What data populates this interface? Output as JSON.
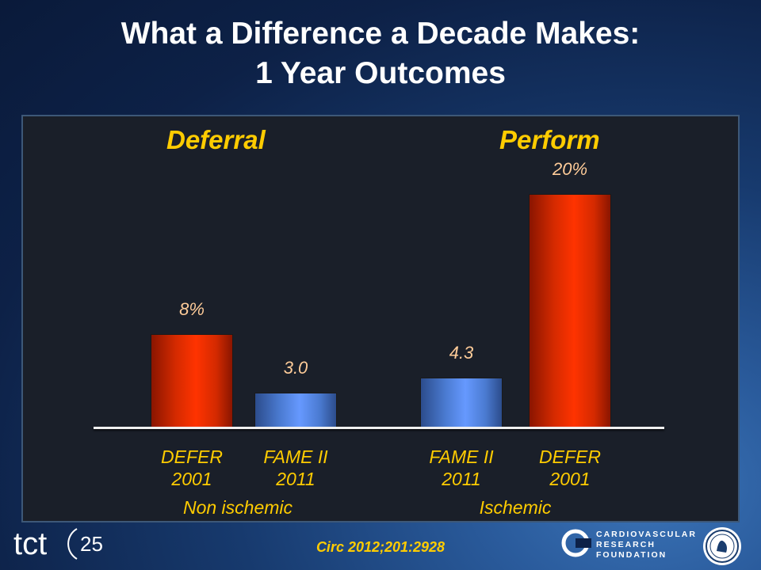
{
  "title_line1": "What a Difference a Decade Makes:",
  "title_line2": "1 Year Outcomes",
  "group_left": "Deferral",
  "group_right": "Perform",
  "citation": "Circ 2012;201:2928",
  "logo": {
    "tct_text": "tct",
    "tct_number": "25",
    "crf_lines": [
      "CARDIOVASCULAR",
      "RESEARCH",
      "FOUNDATION"
    ]
  },
  "colors": {
    "red": "#ff3300",
    "blue": "#6699ff",
    "label_yellow": "#ffcc00"
  },
  "chart_data": {
    "type": "bar",
    "title": "",
    "groups": [
      {
        "name": "Non ischemic",
        "header": "Deferral"
      },
      {
        "name": "Ischemic",
        "header": "Perform"
      }
    ],
    "bars": [
      {
        "name": "DEFER",
        "year": "2001",
        "group": "Non ischemic",
        "value": 8,
        "label": "8%",
        "color": "red"
      },
      {
        "name": "FAME II",
        "year": "2011",
        "group": "Non ischemic",
        "value": 3.0,
        "label": "3.0",
        "color": "blue"
      },
      {
        "name": "FAME II",
        "year": "2011",
        "group": "Ischemic",
        "value": 4.3,
        "label": "4.3",
        "color": "blue"
      },
      {
        "name": "DEFER",
        "year": "2001",
        "group": "Ischemic",
        "value": 20,
        "label": "20%",
        "color": "red"
      }
    ],
    "ylim": [
      0,
      20
    ],
    "grid": false,
    "xlabel": "",
    "ylabel": ""
  }
}
